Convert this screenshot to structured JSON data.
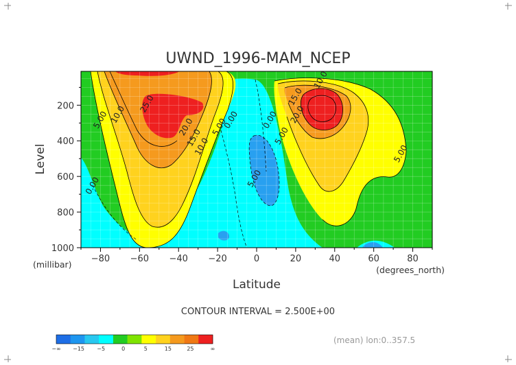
{
  "chart_data": {
    "type": "contour",
    "title": "UWND_1996-MAM_NCEP",
    "xlabel": "Latitude",
    "ylabel": "Level",
    "x_unit": "(degrees_north)",
    "y_unit": "(millibar)",
    "xlim": [
      -90,
      90
    ],
    "ylim": [
      1000,
      10
    ],
    "y_inverted": true,
    "x_ticks": [
      -80,
      -60,
      -40,
      -20,
      0,
      20,
      40,
      60,
      80
    ],
    "y_ticks": [
      200,
      400,
      600,
      800,
      1000
    ],
    "contour_interval_text": "CONTOUR INTERVAL = 2.500E+00",
    "note_text": "(mean) lon:0..357.5",
    "grid": true,
    "colorbar": {
      "labels": [
        "-∞",
        "-15",
        "-5",
        "0",
        "5",
        "15",
        "25",
        "∞"
      ],
      "colors": [
        "#1e6ee6",
        "#1e96f0",
        "#28c8f0",
        "#00ffff",
        "#22cc22",
        "#7fe400",
        "#ffff00",
        "#ffd21e",
        "#f59a1e",
        "#f07814",
        "#ee2020"
      ]
    },
    "labeled_contours": [
      {
        "text": "25.0",
        "lat": -55,
        "lev": 200
      },
      {
        "text": "20.0",
        "lat": -35,
        "lev": 330
      },
      {
        "text": "15.0",
        "lat": -31,
        "lev": 390
      },
      {
        "text": "10.0",
        "lat": -27,
        "lev": 440
      },
      {
        "text": "5.00",
        "lat": -18,
        "lev": 330
      },
      {
        "text": "0.00",
        "lat": -12,
        "lev": 290
      },
      {
        "text": "10.0",
        "lat": -70,
        "lev": 260
      },
      {
        "text": "5.00",
        "lat": -79,
        "lev": 290
      },
      {
        "text": "0.00",
        "lat": -83,
        "lev": 660
      },
      {
        "text": "5.00",
        "lat": 0,
        "lev": 620
      },
      {
        "text": "0.00",
        "lat": 8,
        "lev": 290
      },
      {
        "text": "5.00",
        "lat": 14,
        "lev": 380
      },
      {
        "text": "15.0",
        "lat": 21,
        "lev": 160
      },
      {
        "text": "10.0",
        "lat": 34,
        "lev": 65
      },
      {
        "text": "20.0",
        "lat": 22,
        "lev": 260
      },
      {
        "text": "5.00",
        "lat": 75,
        "lev": 480
      }
    ]
  }
}
